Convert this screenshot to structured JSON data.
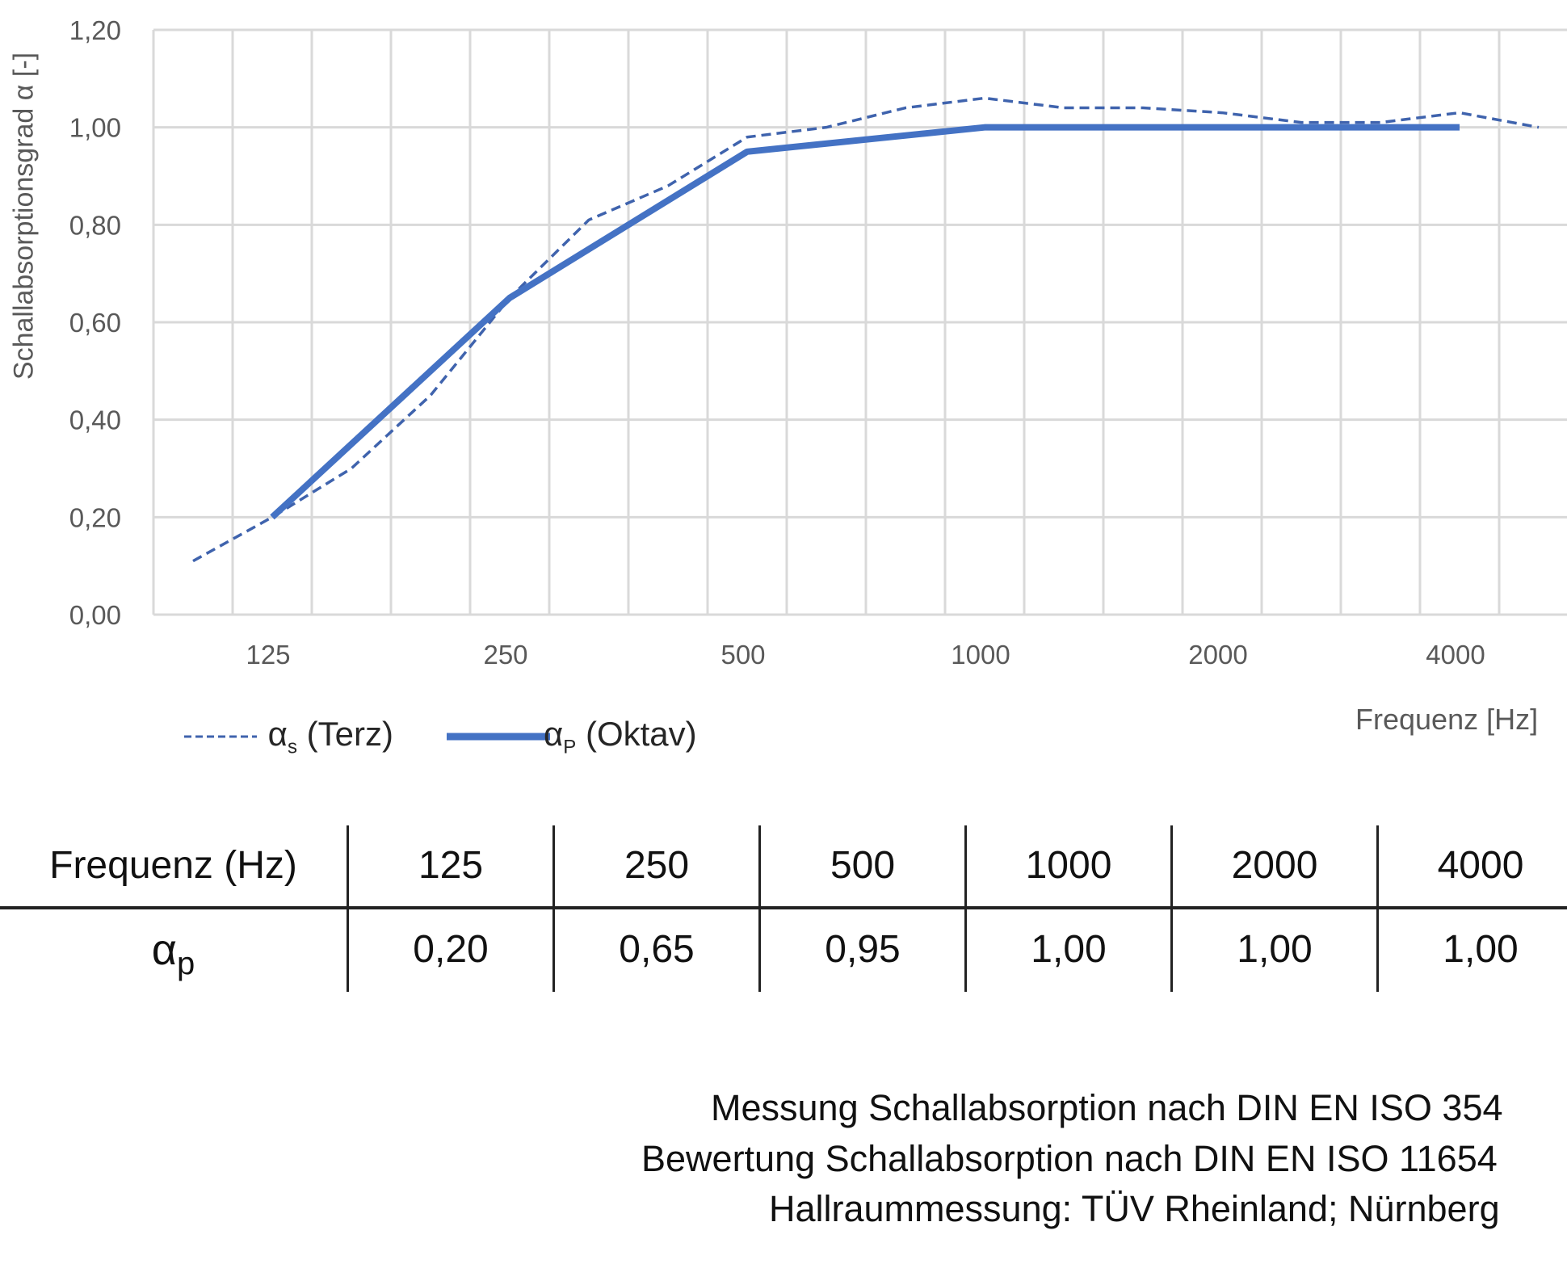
{
  "chart_data": {
    "type": "line",
    "ylabel": "Schallabsorptionsgrad α [-]",
    "xlabel": "Frequenz [Hz]",
    "ylim": [
      0,
      1.2
    ],
    "yticks": [
      "0,00",
      "0,20",
      "0,40",
      "0,60",
      "0,80",
      "1,00",
      "1,20"
    ],
    "ytick_values": [
      0,
      0.2,
      0.4,
      0.6,
      0.8,
      1.0,
      1.2
    ],
    "x_bands": [
      100,
      125,
      160,
      200,
      250,
      315,
      400,
      500,
      630,
      800,
      1000,
      1250,
      1600,
      2000,
      2500,
      3150,
      4000,
      5000
    ],
    "xtick_labels": [
      "125",
      "250",
      "500",
      "1000",
      "2000",
      "4000"
    ],
    "xtick_values": [
      125,
      250,
      500,
      1000,
      2000,
      4000
    ],
    "grid": true,
    "legend_placement": "bottom-left",
    "series": [
      {
        "name": "αs (Terz)",
        "style": "dashed",
        "color": "#3f63ad",
        "x": [
          100,
          125,
          160,
          200,
          250,
          315,
          400,
          500,
          630,
          800,
          1000,
          1250,
          1600,
          2000,
          2500,
          3150,
          4000,
          5000
        ],
        "values": [
          0.11,
          0.2,
          0.3,
          0.45,
          0.65,
          0.81,
          0.88,
          0.98,
          1.0,
          1.04,
          1.06,
          1.04,
          1.04,
          1.03,
          1.01,
          1.01,
          1.03,
          1.0
        ]
      },
      {
        "name": "αp (Oktav)",
        "style": "solid",
        "color": "#4472c4",
        "x": [
          125,
          250,
          500,
          1000,
          2000,
          4000
        ],
        "values": [
          0.2,
          0.65,
          0.95,
          1.0,
          1.0,
          1.0
        ]
      }
    ]
  },
  "legend": {
    "terz": {
      "symbol": "α",
      "sub": "s",
      "label": "(Terz)"
    },
    "oktav": {
      "symbol": "α",
      "sub": "P",
      "label": "(Oktav)"
    }
  },
  "table": {
    "header_label": "Frequenz (Hz)",
    "row_label": "α",
    "row_label_sub": "p",
    "frequencies": [
      "125",
      "250",
      "500",
      "1000",
      "2000",
      "4000"
    ],
    "values": [
      "0,20",
      "0,65",
      "0,95",
      "1,00",
      "1,00",
      "1,00"
    ]
  },
  "footer": [
    "Messung Schallabsorption nach DIN EN ISO 354",
    "Bewertung Schallabsorption nach DIN EN ISO 11654",
    "Hallraummessung: TÜV Rheinland; Nürnberg"
  ]
}
